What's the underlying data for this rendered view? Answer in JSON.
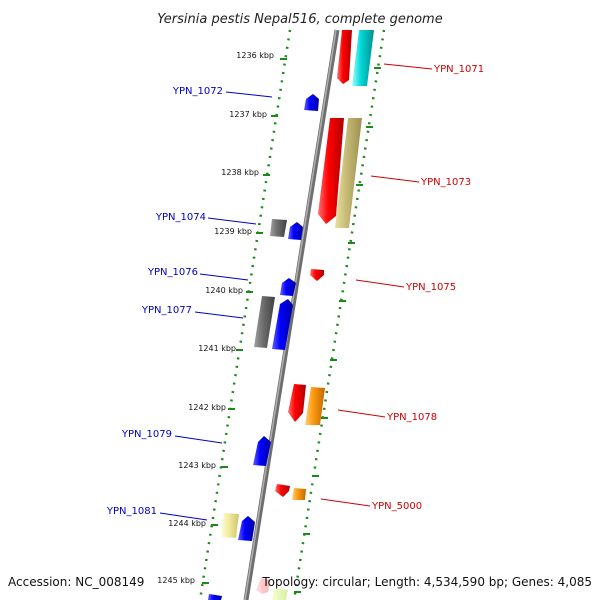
{
  "title": "Yersinia pestis Nepal516, complete genome",
  "footer": {
    "accession": "Accession: NC_008149",
    "topology": "Topology: circular; Length: 4,534,590 bp; Genes: 4,085"
  },
  "colors": {
    "backbone": "#7a7a7a",
    "tick": "#1a8a1a",
    "label_forward": "#d00000",
    "label_reverse": "#0000c8"
  },
  "kbp_labels": [
    "1236 kbp",
    "1237 kbp",
    "1238 kbp",
    "1239 kbp",
    "1240 kbp",
    "1241 kbp",
    "1242 kbp",
    "1243 kbp",
    "1244 kbp",
    "1245 kbp"
  ],
  "gene_labels": {
    "YPN_1071": "YPN_1071",
    "YPN_1072": "YPN_1072",
    "YPN_1073": "YPN_1073",
    "YPN_1074": "YPN_1074",
    "YPN_1075": "YPN_1075",
    "YPN_1076": "YPN_1076",
    "YPN_1077": "YPN_1077",
    "YPN_1078": "YPN_1078",
    "YPN_1079": "YPN_1079",
    "YPN_1081": "YPN_1081",
    "YPN_5000": "YPN_5000"
  }
}
